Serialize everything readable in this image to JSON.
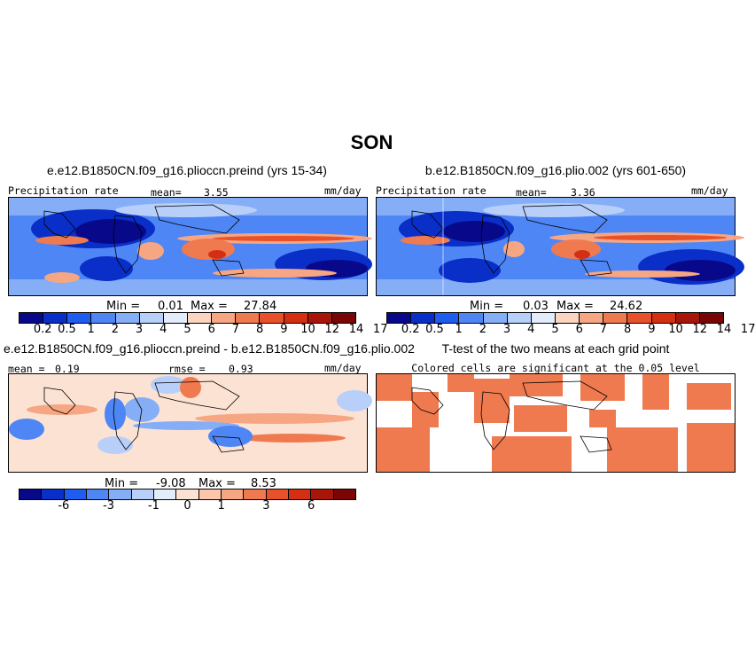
{
  "figure_title": "SON",
  "colors": {
    "precip_palette": [
      "#08088a",
      "#0a2fc8",
      "#1f5cf0",
      "#4f86f5",
      "#86aef7",
      "#b7cff9",
      "#e3ecfb",
      "#fbd5c0",
      "#f6a682",
      "#f07a4f",
      "#e8512a",
      "#d42f12",
      "#a8160a",
      "#7a0505"
    ],
    "diff_palette": [
      "#08088a",
      "#0a2fc8",
      "#1f5cf0",
      "#4f86f5",
      "#86aef7",
      "#b7cff9",
      "#e3ecfb",
      "#fbe2d3",
      "#fbc6ab",
      "#f6a682",
      "#f07a4f",
      "#e8512a",
      "#d42f12",
      "#a8160a",
      "#7a0505"
    ],
    "ttest_color": "#f07a4f"
  },
  "panels": {
    "top_left": {
      "title": "e.e12.B1850CN.f09_g16.plioccn.preind (yrs 15-34)",
      "left_label": "Precipitation rate",
      "mean_label": "mean=",
      "mean_value": "3.55",
      "units": "mm/day",
      "min_label": "Min =",
      "min_value": "0.01",
      "max_label": "Max =",
      "max_value": "27.84"
    },
    "top_right": {
      "title": "b.e12.B1850CN.f09_g16.plio.002 (yrs 601-650)",
      "left_label": "Precipitation rate",
      "mean_label": "mean=",
      "mean_value": "3.36",
      "units": "mm/day",
      "min_label": "Min =",
      "min_value": "0.03",
      "max_label": "Max =",
      "max_value": "24.62"
    },
    "bottom_left": {
      "title": "e.e12.B1850CN.f09_g16.plioccn.preind - b.e12.B1850CN.f09_g16.plio.002",
      "mean_label": "mean =",
      "mean_value": "0.19",
      "rmse_label": "rmse =",
      "rmse_value": "0.93",
      "units": "mm/day",
      "min_label": "Min =",
      "min_value": "-9.08",
      "max_label": "Max =",
      "max_value": "8.53"
    },
    "bottom_right": {
      "title": "T-test of the two means at each grid point",
      "subtitle": "Colored cells are significant at the 0.05 level"
    }
  },
  "chart_data": [
    {
      "type": "heatmap",
      "title": "e.e12.B1850CN.f09_g16.plioccn.preind (yrs 15-34)",
      "variable": "Precipitation rate",
      "units": "mm/day",
      "mean": 3.55,
      "min": 0.01,
      "max": 27.84,
      "colorbar_levels": [
        0.2,
        0.5,
        1,
        2,
        3,
        4,
        5,
        6,
        7,
        8,
        9,
        10,
        12,
        14,
        17
      ],
      "colorbar_ticks": [
        "0.2",
        "0.5",
        "1",
        "2",
        "3",
        "4",
        "5",
        "6",
        "7",
        "8",
        "9",
        "10",
        "12",
        "14",
        "17"
      ]
    },
    {
      "type": "heatmap",
      "title": "b.e12.B1850CN.f09_g16.plio.002 (yrs 601-650)",
      "variable": "Precipitation rate",
      "units": "mm/day",
      "mean": 3.36,
      "min": 0.03,
      "max": 24.62,
      "colorbar_levels": [
        0.2,
        0.5,
        1,
        2,
        3,
        4,
        5,
        6,
        7,
        8,
        9,
        10,
        12,
        14,
        17
      ],
      "colorbar_ticks": [
        "0.2",
        "0.5",
        "1",
        "2",
        "3",
        "4",
        "5",
        "6",
        "7",
        "8",
        "9",
        "10",
        "12",
        "14",
        "17"
      ]
    },
    {
      "type": "heatmap",
      "title": "e.e12.B1850CN.f09_g16.plioccn.preind - b.e12.B1850CN.f09_g16.plio.002",
      "units": "mm/day",
      "mean": 0.19,
      "rmse": 0.93,
      "min": -9.08,
      "max": 8.53,
      "colorbar_ticks": [
        "-6",
        "-3",
        "-1",
        "0",
        "1",
        "3",
        "6"
      ]
    },
    {
      "type": "heatmap",
      "title": "T-test of the two means at each grid point",
      "subtitle": "Colored cells are significant at the 0.05 level",
      "significance_level": 0.05
    }
  ]
}
